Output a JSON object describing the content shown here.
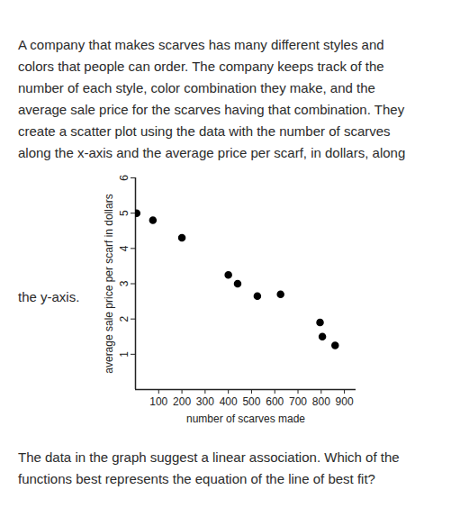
{
  "paragraph_lines": [
    "A company that makes scarves has many different styles and",
    "colors that people can order. The company keeps track of the",
    "number of each style, color combination they make, and the",
    "average sale price for the scarves having that combination. They",
    "create a scatter plot using the data with the number of scarves",
    "along the x-axis and the average price per scarf, in dollars, along"
  ],
  "side_label": "the y-axis.",
  "question_lines": [
    "The data in the graph suggest a linear association. Which of the",
    "functions best represents the equation of the line of best fit?"
  ],
  "chart_data": {
    "type": "scatter",
    "x_label": "number of scarves made",
    "y_label": "average sale price per scarf in dollars",
    "x": [
      5,
      75,
      200,
      400,
      440,
      525,
      625,
      795,
      805,
      860
    ],
    "values": [
      5.0,
      4.8,
      4.3,
      3.25,
      3.0,
      2.65,
      2.7,
      1.9,
      1.5,
      1.25
    ],
    "color": "#000000",
    "marker": "circle",
    "xlim": [
      0,
      950
    ],
    "ylim": [
      0,
      6
    ],
    "xticks": [
      100,
      200,
      300,
      400,
      500,
      600,
      700,
      800,
      900
    ],
    "yticks": [
      1,
      2,
      3,
      4,
      5,
      6
    ],
    "grid": false
  }
}
